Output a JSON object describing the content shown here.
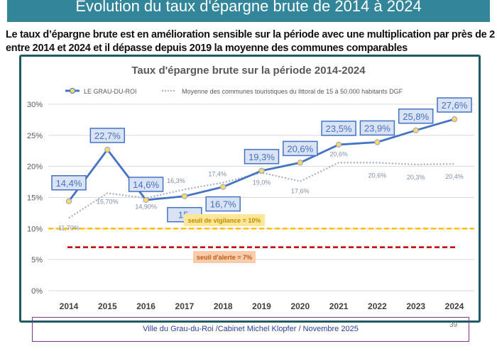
{
  "banner_title": "Evolution du taux d'épargne brute de 2014 à 2024",
  "subtitle": "Le taux d’épargne brute est en amélioration sensible sur la période avec une multiplication par près de 2 entre 2014 et 2024 et il dépasse depuis 2019 la moyenne des communes comparables",
  "footer": "Ville du Grau-du-Roi /Cabinet Michel Klopfer / Novembre 2025",
  "page_number": "39",
  "chart_data": {
    "type": "line",
    "title": "Taux d'épargne brute sur la période 2014-2024",
    "categories": [
      "2014",
      "2015",
      "2016",
      "2017",
      "2018",
      "2019",
      "2020",
      "2021",
      "2022",
      "2023",
      "2024"
    ],
    "ylim": [
      0,
      30
    ],
    "yticks": [
      "0%",
      "5%",
      "10%",
      "15%",
      "20%",
      "25%",
      "30%"
    ],
    "grid": true,
    "legend_position": "top",
    "series": [
      {
        "name": "LE GRAU-DU-ROI",
        "color": "#4472c4",
        "values": [
          14.4,
          22.7,
          14.6,
          15.2,
          16.7,
          19.3,
          20.6,
          23.5,
          23.9,
          25.8,
          27.6
        ],
        "labels": [
          "14,4%",
          "22,7%",
          "14,6%",
          "15,",
          "16,7%",
          "19,3%",
          "20,6%",
          "23,5%",
          "23,9%",
          "25,8%",
          "27,6%"
        ]
      },
      {
        "name": "Moyenne des communes touristiques du littoral de 15 à 50.000 habitants DGF",
        "color": "#a5b0c4",
        "values": [
          11.7,
          15.7,
          14.9,
          16.3,
          17.4,
          19.0,
          17.6,
          20.6,
          20.6,
          20.3,
          20.4
        ],
        "labels": [
          "11,70%",
          "15,70%",
          "14,90%",
          "16,3%",
          "17,4%",
          "19,0%",
          "17,6%",
          "20,6%",
          "20,6%",
          "20,3%",
          "20,4%"
        ]
      }
    ],
    "thresholds": [
      {
        "label": "seuil de vigilance = 10%",
        "value": 10,
        "color": "#ffc000"
      },
      {
        "label": "seuil d'alerte = 7%",
        "value": 7,
        "color": "#c00000"
      }
    ]
  }
}
